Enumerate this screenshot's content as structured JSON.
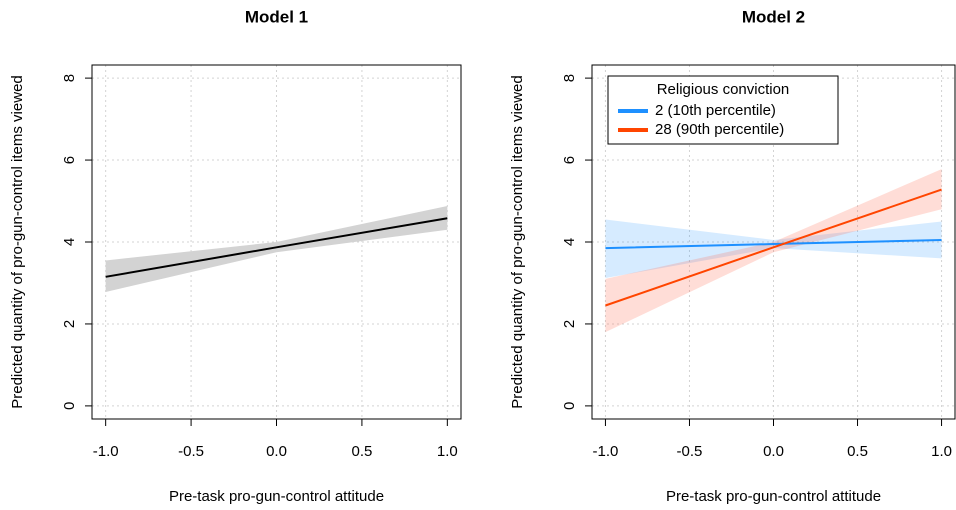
{
  "chart_data": [
    {
      "type": "line",
      "title": "Model 1",
      "xlabel": "Pre-task pro-gun-control attitude",
      "ylabel": "Predicted quantity of pro-gun-control items viewed",
      "xlim": [
        -1.08,
        1.08
      ],
      "ylim": [
        -0.32,
        8.32
      ],
      "xticks": [
        {
          "value": -1,
          "label": "-1.0"
        },
        {
          "value": -0.5,
          "label": "-0.5"
        },
        {
          "value": 0,
          "label": "0.0"
        },
        {
          "value": 0.5,
          "label": "0.5"
        },
        {
          "value": 1,
          "label": "1.0"
        }
      ],
      "yticks": [
        0,
        2,
        4,
        6,
        8
      ],
      "grid": true,
      "series": [
        {
          "color": "#000000",
          "band_color": "#d3d3d3",
          "x": [
            -1,
            0,
            1
          ],
          "values": [
            3.15,
            3.87,
            4.58
          ],
          "lower": [
            2.78,
            3.75,
            4.3
          ],
          "upper": [
            3.55,
            4.0,
            4.88
          ]
        }
      ]
    },
    {
      "type": "line",
      "title": "Model 2",
      "xlabel": "Pre-task pro-gun-control attitude",
      "ylabel": "Predicted quantity of pro-gun-control items viewed",
      "xlim": [
        -1.08,
        1.08
      ],
      "ylim": [
        -0.32,
        8.32
      ],
      "xticks": [
        {
          "value": -1,
          "label": "-1.0"
        },
        {
          "value": -0.5,
          "label": "-0.5"
        },
        {
          "value": 0,
          "label": "0.0"
        },
        {
          "value": 0.5,
          "label": "0.5"
        },
        {
          "value": 1,
          "label": "1.0"
        }
      ],
      "yticks": [
        0,
        2,
        4,
        6,
        8
      ],
      "grid": true,
      "legend": "top-left",
      "legend_title": "Religious conviction",
      "series": [
        {
          "name": "2 (10th percentile)",
          "color": "#1e90ff",
          "band_color": "rgba(30,144,255,0.18)",
          "x": [
            -1,
            0,
            1
          ],
          "values": [
            3.85,
            3.95,
            4.05
          ],
          "lower": [
            3.12,
            3.85,
            3.6
          ],
          "upper": [
            4.55,
            4.05,
            4.5
          ]
        },
        {
          "name": "28 (90th percentile)",
          "color": "#ff4500",
          "band_color": "rgba(255,99,71,0.22)",
          "x": [
            -1,
            0,
            1
          ],
          "values": [
            2.45,
            3.87,
            5.28
          ],
          "lower": [
            1.8,
            3.75,
            4.8
          ],
          "upper": [
            3.1,
            4.0,
            5.78
          ]
        }
      ]
    }
  ]
}
